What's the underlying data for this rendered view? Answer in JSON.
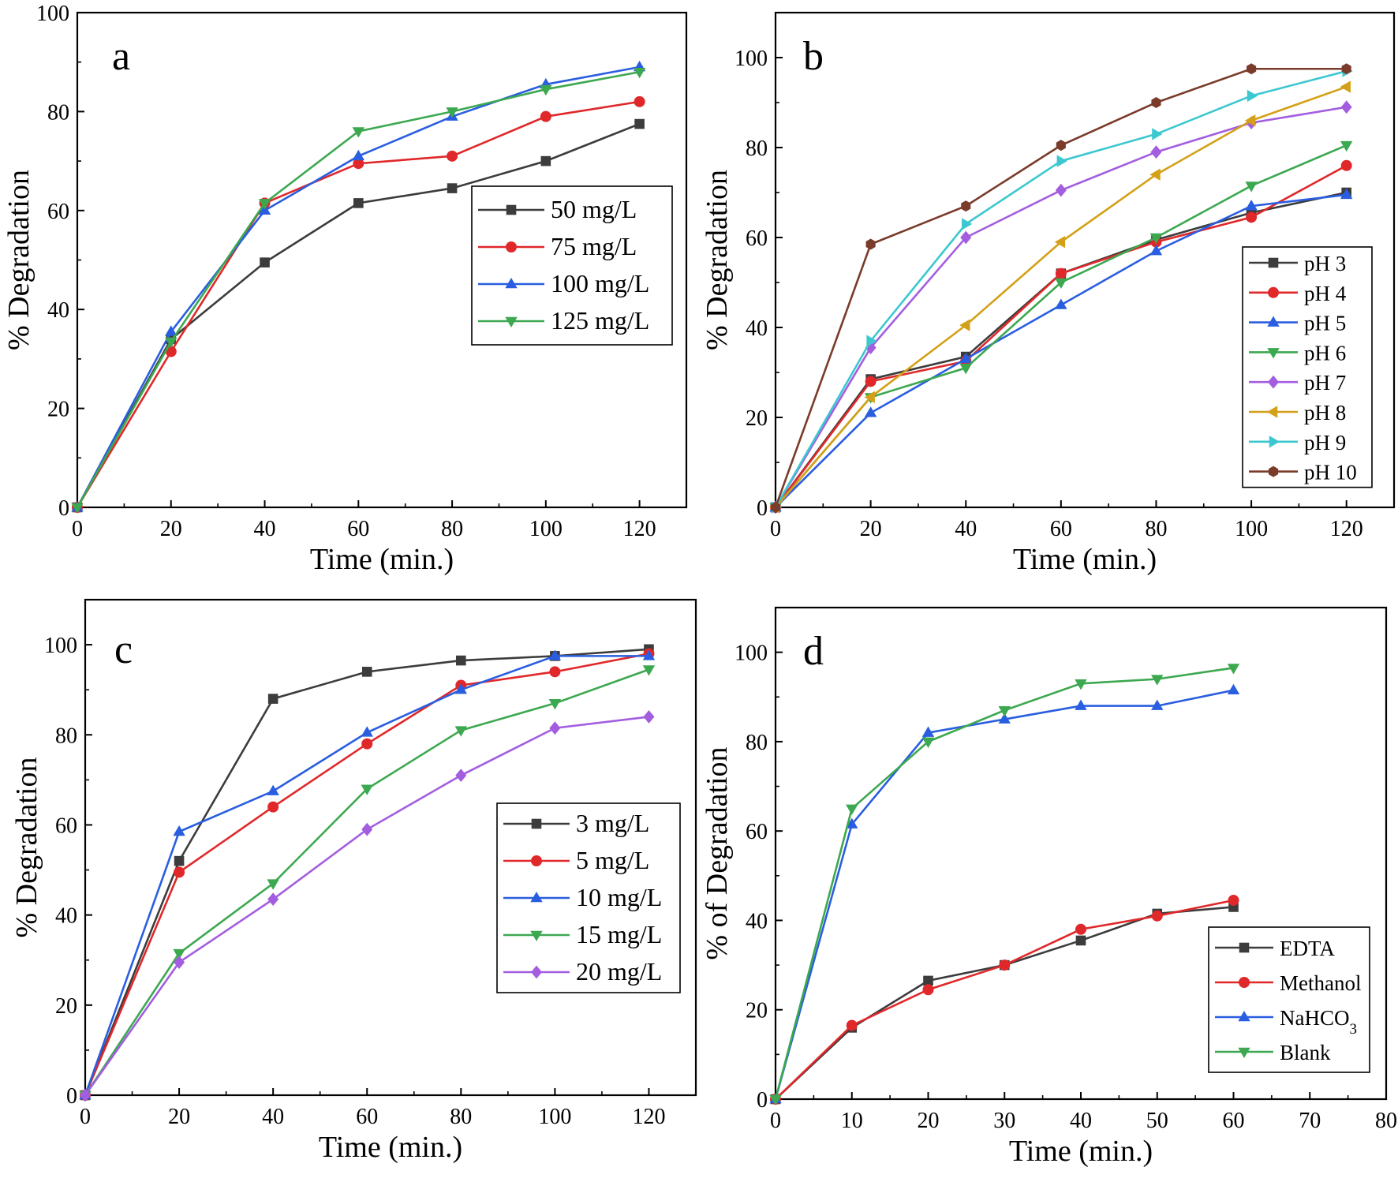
{
  "chart_data": [
    {
      "type": "line",
      "panel_label": "a",
      "xlabel": "Time (min.)",
      "ylabel": "% Degradation",
      "xlim": [
        0,
        130
      ],
      "ylim": [
        0,
        100
      ],
      "xticks": [
        0,
        20,
        40,
        60,
        80,
        100,
        120
      ],
      "yticks": [
        0,
        20,
        40,
        60,
        80,
        100
      ],
      "legend_position": "center-right",
      "x": [
        0,
        20,
        40,
        60,
        80,
        100,
        120
      ],
      "series": [
        {
          "name": "50 mg/L",
          "color": "#3c3c3c",
          "marker": "square",
          "values": [
            0,
            34,
            49.5,
            61.5,
            64.5,
            70,
            77.5
          ]
        },
        {
          "name": "75 mg/L",
          "color": "#e0282a",
          "marker": "circle",
          "values": [
            0,
            31.5,
            61.5,
            69.5,
            71,
            79,
            82
          ]
        },
        {
          "name": "100 mg/L",
          "color": "#2a5ee0",
          "marker": "triangle-up",
          "values": [
            0,
            35.5,
            60,
            71,
            79,
            85.5,
            89
          ]
        },
        {
          "name": "125 mg/L",
          "color": "#3ca850",
          "marker": "triangle-down",
          "values": [
            0,
            33.5,
            61.5,
            76,
            80,
            84.5,
            88
          ]
        }
      ]
    },
    {
      "type": "line",
      "panel_label": "b",
      "xlabel": "Time (min.)",
      "ylabel": "% Degradation",
      "xlim": [
        0,
        130
      ],
      "ylim": [
        0,
        110
      ],
      "xticks": [
        0,
        20,
        40,
        60,
        80,
        100,
        120
      ],
      "yticks": [
        0,
        20,
        40,
        60,
        80,
        100
      ],
      "legend_position": "bottom-right",
      "x": [
        0,
        20,
        40,
        60,
        80,
        100,
        120
      ],
      "series": [
        {
          "name": "pH 3",
          "color": "#3c3c3c",
          "marker": "square",
          "values": [
            0,
            28.5,
            33.5,
            52,
            59.5,
            65.5,
            70
          ]
        },
        {
          "name": "pH 4",
          "color": "#e0282a",
          "marker": "circle",
          "values": [
            0,
            28,
            32.5,
            52,
            59,
            64.5,
            76
          ]
        },
        {
          "name": "pH 5",
          "color": "#2a5ee0",
          "marker": "triangle-up",
          "values": [
            0,
            21,
            33,
            45,
            57,
            67,
            69.5
          ]
        },
        {
          "name": "pH 6",
          "color": "#3ca850",
          "marker": "triangle-down",
          "values": [
            0,
            24.5,
            31,
            50,
            60,
            71.5,
            80.5
          ]
        },
        {
          "name": "pH 7",
          "color": "#a35ee0",
          "marker": "diamond",
          "values": [
            0,
            35.5,
            60,
            70.5,
            79,
            85.5,
            89
          ]
        },
        {
          "name": "pH 8",
          "color": "#d4a017",
          "marker": "triangle-left",
          "values": [
            0,
            24.5,
            40.5,
            59,
            74,
            86,
            93.5
          ]
        },
        {
          "name": "pH 9",
          "color": "#3cc8d0",
          "marker": "triangle-right",
          "values": [
            0,
            37,
            63,
            77,
            83,
            91.5,
            97
          ]
        },
        {
          "name": "pH 10",
          "color": "#7a3b2a",
          "marker": "hexagon",
          "values": [
            0,
            58.5,
            67,
            80.5,
            90,
            97.5,
            97.5
          ]
        }
      ]
    },
    {
      "type": "line",
      "panel_label": "c",
      "xlabel": "Time (min.)",
      "ylabel": "% Degradation",
      "xlim": [
        0,
        130
      ],
      "ylim": [
        0,
        110
      ],
      "xticks": [
        0,
        20,
        40,
        60,
        80,
        100,
        120
      ],
      "yticks": [
        0,
        20,
        40,
        60,
        80,
        100
      ],
      "legend_position": "center-right",
      "x": [
        0,
        20,
        40,
        60,
        80,
        100,
        120
      ],
      "series": [
        {
          "name": "3 mg/L",
          "color": "#3c3c3c",
          "marker": "square",
          "values": [
            0,
            52,
            88,
            94,
            96.5,
            97.5,
            99
          ]
        },
        {
          "name": "5 mg/L",
          "color": "#e0282a",
          "marker": "circle",
          "values": [
            0,
            49.5,
            64,
            78,
            91,
            94,
            98
          ]
        },
        {
          "name": "10 mg/L",
          "color": "#2a5ee0",
          "marker": "triangle-up",
          "values": [
            0,
            58.5,
            67.5,
            80.5,
            90,
            97.5,
            97.5
          ]
        },
        {
          "name": "15 mg/L",
          "color": "#3ca850",
          "marker": "triangle-down",
          "values": [
            0,
            31.5,
            47,
            68,
            81,
            87,
            94.5
          ]
        },
        {
          "name": "20 mg/L",
          "color": "#a35ee0",
          "marker": "diamond",
          "values": [
            0,
            29.5,
            43.5,
            59,
            71,
            81.5,
            84
          ]
        }
      ]
    },
    {
      "type": "line",
      "panel_label": "d",
      "xlabel": "Time (min.)",
      "ylabel": "% of Degradation",
      "xlim": [
        0,
        80
      ],
      "ylim": [
        0,
        110
      ],
      "xticks": [
        0,
        10,
        20,
        30,
        40,
        50,
        60,
        70,
        80
      ],
      "yticks": [
        0,
        20,
        40,
        60,
        80,
        100
      ],
      "legend_position": "bottom-right",
      "x": [
        0,
        10,
        20,
        30,
        40,
        50,
        60
      ],
      "series": [
        {
          "name": "EDTA",
          "color": "#3c3c3c",
          "marker": "square",
          "values": [
            0,
            16,
            26.5,
            30,
            35.5,
            41.5,
            43
          ]
        },
        {
          "name": "Methanol",
          "color": "#e0282a",
          "marker": "circle",
          "values": [
            0,
            16.5,
            24.5,
            30,
            38,
            41,
            44.5
          ]
        },
        {
          "name": "NaHCO",
          "name_subscript": "3",
          "color": "#2a5ee0",
          "marker": "triangle-up",
          "values": [
            0,
            61.5,
            82,
            85,
            88,
            88,
            91.5
          ]
        },
        {
          "name": "Blank",
          "color": "#3ca850",
          "marker": "triangle-down",
          "values": [
            0,
            65,
            80,
            87,
            93,
            94,
            96.5
          ]
        }
      ]
    }
  ]
}
